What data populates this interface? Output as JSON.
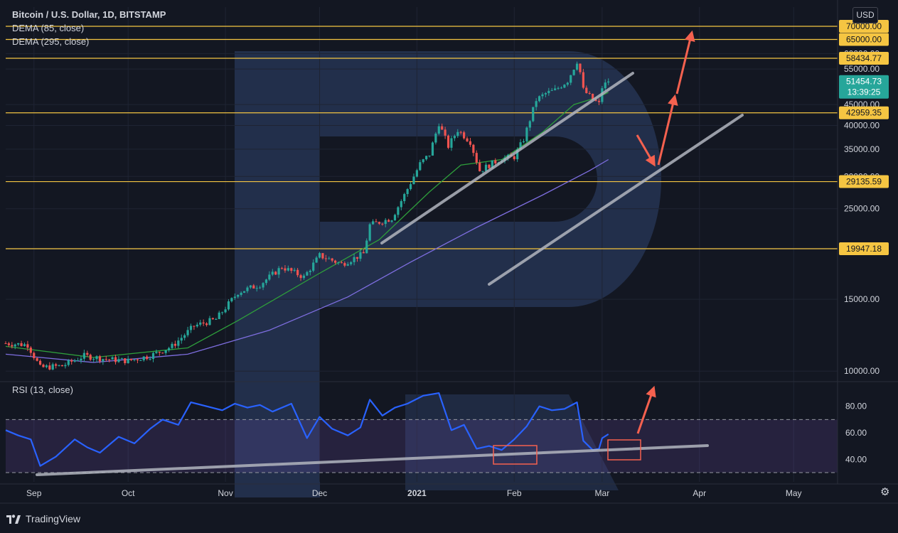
{
  "header": {
    "title": "Bitcoin / U.S. Dollar, 1D, BITSTAMP",
    "indicator_1": "DEMA (85, close)",
    "indicator_2": "DEMA (295, close)",
    "currency_button": "USD"
  },
  "rsi_title": "RSI (13, close)",
  "footer": {
    "brand": "TradingView"
  },
  "colors": {
    "background": "#131722",
    "up_candle": "#26a69a",
    "down_candle": "#ef5350",
    "level_line": "#f5c542",
    "dema85": "#2e9e3b",
    "dema295": "#7e6ee0",
    "rsi_line": "#2962ff",
    "rsi_band": "#7e57c2",
    "trendline": "#b2b5be",
    "arrow": "#f5614f",
    "price_badge": "#26a69a"
  },
  "chart_data": {
    "type": "candlestick",
    "symbol": "Bitcoin / U.S. Dollar",
    "interval": "1D",
    "exchange": "BITSTAMP",
    "x_ticks": [
      "Sep",
      "Oct",
      "Nov",
      "Dec",
      "2021",
      "Feb",
      "Mar",
      "Apr",
      "May"
    ],
    "x_range": [
      "2020-08-23",
      "2021-05-15"
    ],
    "y_scale": "log",
    "y_ticks": [
      "10000.00",
      "15000.00",
      "20000.00",
      "25000.00",
      "30000.00",
      "35000.00",
      "40000.00",
      "45000.00",
      "55000.00",
      "60000.00"
    ],
    "y_range": [
      9500,
      78000
    ],
    "levels": [
      "70000.00",
      "65000.00",
      "58434.77",
      "42959.35",
      "29135.59",
      "19947.18"
    ],
    "last_price": {
      "value": "51454.73",
      "countdown": "13:39:25"
    },
    "close_series": [
      [
        "2020-08-23",
        11700
      ],
      [
        "2020-08-30",
        11600
      ],
      [
        "2020-09-03",
        10200
      ],
      [
        "2020-09-10",
        10300
      ],
      [
        "2020-09-17",
        10900
      ],
      [
        "2020-09-24",
        10700
      ],
      [
        "2020-10-01",
        10600
      ],
      [
        "2020-10-08",
        10900
      ],
      [
        "2020-10-15",
        11500
      ],
      [
        "2020-10-22",
        12900
      ],
      [
        "2020-10-29",
        13400
      ],
      [
        "2020-11-05",
        15600
      ],
      [
        "2020-11-12",
        16300
      ],
      [
        "2020-11-19",
        18000
      ],
      [
        "2020-11-26",
        17000
      ],
      [
        "2020-12-01",
        19200
      ],
      [
        "2020-12-08",
        18300
      ],
      [
        "2020-12-15",
        19400
      ],
      [
        "2020-12-17",
        22800
      ],
      [
        "2020-12-24",
        23700
      ],
      [
        "2020-12-28",
        27000
      ],
      [
        "2021-01-02",
        32200
      ],
      [
        "2021-01-05",
        34000
      ],
      [
        "2021-01-08",
        40500
      ],
      [
        "2021-01-11",
        35600
      ],
      [
        "2021-01-14",
        39000
      ],
      [
        "2021-01-18",
        36500
      ],
      [
        "2021-01-21",
        31000
      ],
      [
        "2021-01-25",
        32300
      ],
      [
        "2021-01-28",
        33200
      ],
      [
        "2021-02-01",
        33500
      ],
      [
        "2021-02-04",
        37000
      ],
      [
        "2021-02-08",
        46200
      ],
      [
        "2021-02-11",
        47900
      ],
      [
        "2021-02-14",
        48800
      ],
      [
        "2021-02-18",
        51500
      ],
      [
        "2021-02-21",
        57500
      ],
      [
        "2021-02-22",
        54000
      ],
      [
        "2021-02-23",
        48900
      ],
      [
        "2021-02-26",
        46300
      ],
      [
        "2021-02-28",
        45200
      ],
      [
        "2021-03-01",
        49600
      ],
      [
        "2021-03-03",
        51454
      ]
    ],
    "dema_85": [
      [
        "2020-08-23",
        11500
      ],
      [
        "2020-09-20",
        10800
      ],
      [
        "2020-10-20",
        11400
      ],
      [
        "2020-11-05",
        13300
      ],
      [
        "2020-11-30",
        17200
      ],
      [
        "2020-12-20",
        21000
      ],
      [
        "2021-01-05",
        27500
      ],
      [
        "2021-01-15",
        32000
      ],
      [
        "2021-01-28",
        33000
      ],
      [
        "2021-02-10",
        38500
      ],
      [
        "2021-02-20",
        45000
      ],
      [
        "2021-02-28",
        47000
      ],
      [
        "2021-03-03",
        48200
      ]
    ],
    "dema_295": [
      [
        "2020-08-23",
        11000
      ],
      [
        "2020-09-20",
        10500
      ],
      [
        "2020-10-20",
        11000
      ],
      [
        "2020-11-15",
        12600
      ],
      [
        "2020-12-10",
        15200
      ],
      [
        "2020-12-30",
        18500
      ],
      [
        "2021-01-20",
        22500
      ],
      [
        "2021-02-10",
        27000
      ],
      [
        "2021-02-25",
        31000
      ],
      [
        "2021-03-03",
        33000
      ]
    ],
    "rsi": {
      "title": "RSI (13, close)",
      "y_ticks": [
        "80.00",
        "60.00",
        "40.00"
      ],
      "bands": [
        70,
        30
      ],
      "y_range": [
        23,
        97
      ],
      "values": [
        [
          "2020-08-23",
          62
        ],
        [
          "2020-08-27",
          58
        ],
        [
          "2020-08-31",
          55
        ],
        [
          "2020-09-03",
          35
        ],
        [
          "2020-09-08",
          42
        ],
        [
          "2020-09-14",
          55
        ],
        [
          "2020-09-18",
          49
        ],
        [
          "2020-09-22",
          45
        ],
        [
          "2020-09-28",
          57
        ],
        [
          "2020-10-03",
          52
        ],
        [
          "2020-10-08",
          63
        ],
        [
          "2020-10-12",
          70
        ],
        [
          "2020-10-17",
          66
        ],
        [
          "2020-10-21",
          83
        ],
        [
          "2020-10-26",
          80
        ],
        [
          "2020-10-31",
          77
        ],
        [
          "2020-11-04",
          82
        ],
        [
          "2020-11-08",
          79
        ],
        [
          "2020-11-12",
          81
        ],
        [
          "2020-11-16",
          76
        ],
        [
          "2020-11-22",
          82
        ],
        [
          "2020-11-27",
          56
        ],
        [
          "2020-12-01",
          72
        ],
        [
          "2020-12-05",
          63
        ],
        [
          "2020-12-10",
          58
        ],
        [
          "2020-12-14",
          64
        ],
        [
          "2020-12-17",
          85
        ],
        [
          "2020-12-21",
          73
        ],
        [
          "2020-12-25",
          79
        ],
        [
          "2020-12-29",
          82
        ],
        [
          "2021-01-03",
          88
        ],
        [
          "2021-01-08",
          90
        ],
        [
          "2021-01-12",
          62
        ],
        [
          "2021-01-16",
          66
        ],
        [
          "2021-01-20",
          48
        ],
        [
          "2021-01-24",
          50
        ],
        [
          "2021-01-28",
          47
        ],
        [
          "2021-02-01",
          55
        ],
        [
          "2021-02-05",
          65
        ],
        [
          "2021-02-09",
          80
        ],
        [
          "2021-02-13",
          77
        ],
        [
          "2021-02-17",
          78
        ],
        [
          "2021-02-21",
          83
        ],
        [
          "2021-02-23",
          54
        ],
        [
          "2021-02-26",
          47
        ],
        [
          "2021-02-28",
          48
        ],
        [
          "2021-03-01",
          56
        ],
        [
          "2021-03-03",
          59
        ]
      ]
    }
  }
}
